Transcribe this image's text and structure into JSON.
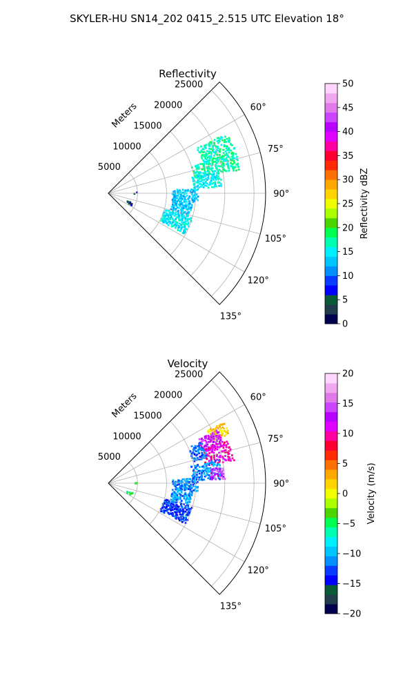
{
  "suptitle": "SKYLER-HU  SN14_202  0415_2.515 UTC Elevation 18°",
  "chart_data": [
    {
      "type": "polar_sector_heatmap",
      "title": "Reflectivity",
      "range_label": "Meters",
      "range_ticks": [
        5000,
        10000,
        15000,
        20000,
        25000
      ],
      "range_max": 27000,
      "azimuth_range_deg": [
        45,
        135
      ],
      "azimuth_ticks": [
        "60°",
        "75°",
        "90°",
        "105°",
        "120°",
        "135°"
      ],
      "azimuth_tick_values": [
        60,
        75,
        90,
        105,
        120,
        135
      ],
      "grid": true,
      "colorbar": {
        "label": "Reflectivity dBZ",
        "min": 0,
        "max": 50,
        "ticks": [
          0,
          5,
          10,
          15,
          20,
          25,
          30,
          35,
          40,
          45,
          50
        ],
        "tick_labels": [
          "0",
          "5",
          "10",
          "15",
          "20",
          "25",
          "30",
          "35",
          "40",
          "45",
          "50"
        ],
        "colors": [
          "#00004c",
          "#1f3d4a",
          "#0b5a3a",
          "#0000ff",
          "#0a3cff",
          "#0090ff",
          "#00c6ff",
          "#00f0ff",
          "#00ffb0",
          "#00ff50",
          "#4ad400",
          "#aaff00",
          "#f0ff00",
          "#ffd400",
          "#ffa800",
          "#ff7000",
          "#ff2a00",
          "#ff0033",
          "#ff00a0",
          "#e000ff",
          "#b800ff",
          "#cc44ff",
          "#e07ae8",
          "#f0a8f0",
          "#ffd6ff"
        ]
      },
      "echo_regions": [
        {
          "az": [
            63,
            73
          ],
          "range": [
            17000,
            23000
          ],
          "value": 17
        },
        {
          "az": [
            72,
            80
          ],
          "range": [
            15000,
            23000
          ],
          "value": 17
        },
        {
          "az": [
            79,
            87
          ],
          "range": [
            14500,
            19500
          ],
          "value": 15
        },
        {
          "az": [
            87,
            96
          ],
          "range": [
            11000,
            15500
          ],
          "value": 13
        },
        {
          "az": [
            96,
            106
          ],
          "range": [
            11000,
            14500
          ],
          "value": 13
        },
        {
          "az": [
            106,
            118
          ],
          "range": [
            10000,
            15000
          ],
          "value": 15
        }
      ],
      "speckles": [
        {
          "az": [
            88,
            92
          ],
          "range": [
            4300,
            5200
          ],
          "value": 6
        },
        {
          "az": [
            112,
            118
          ],
          "range": [
            3500,
            4500
          ],
          "value": 5
        }
      ]
    },
    {
      "type": "polar_sector_heatmap",
      "title": "Velocity",
      "range_label": "Meters",
      "range_ticks": [
        5000,
        10000,
        15000,
        20000,
        25000
      ],
      "range_max": 27000,
      "azimuth_range_deg": [
        45,
        135
      ],
      "azimuth_ticks": [
        "60°",
        "75°",
        "90°",
        "105°",
        "120°",
        "135°"
      ],
      "azimuth_tick_values": [
        60,
        75,
        90,
        105,
        120,
        135
      ],
      "grid": true,
      "colorbar": {
        "label": "Velocity (m/s)",
        "min": -20,
        "max": 20,
        "ticks": [
          -20,
          -15,
          -10,
          -5,
          0,
          5,
          10,
          15,
          20
        ],
        "tick_labels": [
          "−20",
          "−15",
          "−10",
          "−5",
          "0",
          "5",
          "10",
          "15",
          "20"
        ],
        "colors": [
          "#00004c",
          "#1f3d4a",
          "#0b5a3a",
          "#0000ff",
          "#0a3cff",
          "#0090ff",
          "#00c6ff",
          "#00f0ff",
          "#00ffb0",
          "#00ff50",
          "#4ad400",
          "#aaff00",
          "#f0ff00",
          "#ffd400",
          "#ffa800",
          "#ff7000",
          "#ff2a00",
          "#ff0033",
          "#ff00a0",
          "#e000ff",
          "#b800ff",
          "#cc44ff",
          "#e07ae8",
          "#f0a8f0",
          "#ffd6ff"
        ]
      },
      "echo_regions": [
        {
          "az": [
            62,
            68
          ],
          "range": [
            19000,
            22500
          ],
          "value": 2
        },
        {
          "az": [
            64,
            72
          ],
          "range": [
            17000,
            21000
          ],
          "value": 13
        },
        {
          "az": [
            70,
            80
          ],
          "range": [
            17000,
            22000
          ],
          "value": 10
        },
        {
          "az": [
            66,
            76
          ],
          "range": [
            15000,
            17500
          ],
          "value": -12
        },
        {
          "az": [
            78,
            88
          ],
          "range": [
            14500,
            19500
          ],
          "value": -11
        },
        {
          "az": [
            82,
            88
          ],
          "range": [
            17500,
            20000
          ],
          "value": 14
        },
        {
          "az": [
            87,
            96
          ],
          "range": [
            11000,
            15500
          ],
          "value": -11
        },
        {
          "az": [
            96,
            106
          ],
          "range": [
            11000,
            14500
          ],
          "value": -11
        },
        {
          "az": [
            106,
            118
          ],
          "range": [
            10000,
            15000
          ],
          "value": -13
        }
      ],
      "speckles": [
        {
          "az": [
            88,
            92
          ],
          "range": [
            4300,
            5200
          ],
          "value": -3
        },
        {
          "az": [
            112,
            118
          ],
          "range": [
            3500,
            4500
          ],
          "value": -4
        }
      ]
    }
  ]
}
